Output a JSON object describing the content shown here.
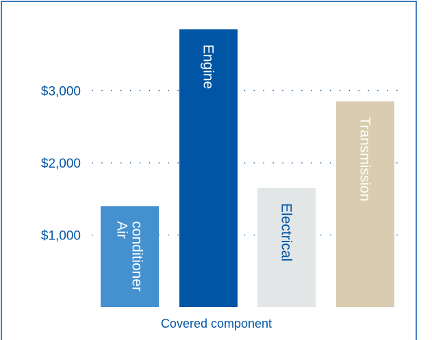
{
  "chart_data": {
    "type": "bar",
    "xlabel": "Covered component",
    "ylabel": "",
    "ylim": [
      0,
      3500
    ],
    "yticks": [
      {
        "value": 1000,
        "label": "$1,000"
      },
      {
        "value": 2000,
        "label": "$2,000"
      },
      {
        "value": 3000,
        "label": "$3,000"
      }
    ],
    "grid": "dotted horizontal",
    "legend": "none",
    "bars": [
      {
        "label_lines": [
          "Air",
          "conditioner"
        ],
        "value": 1400,
        "color": "#4590cf",
        "text_color": "#ffffff"
      },
      {
        "label_lines": [
          "Engine"
        ],
        "value": 3850,
        "color": "#0055a5",
        "text_color": "#ffffff"
      },
      {
        "label_lines": [
          "Electrical"
        ],
        "value": 1650,
        "color": "#e2e6e7",
        "text_color": "#0055a5"
      },
      {
        "label_lines": [
          "Transmission"
        ],
        "value": 2850,
        "color": "#d9ccb0",
        "text_color": "#ffffff"
      }
    ]
  },
  "colors": {
    "axis_text": "#0055a5",
    "dots": "#0055a5",
    "border": "#0055a5"
  }
}
